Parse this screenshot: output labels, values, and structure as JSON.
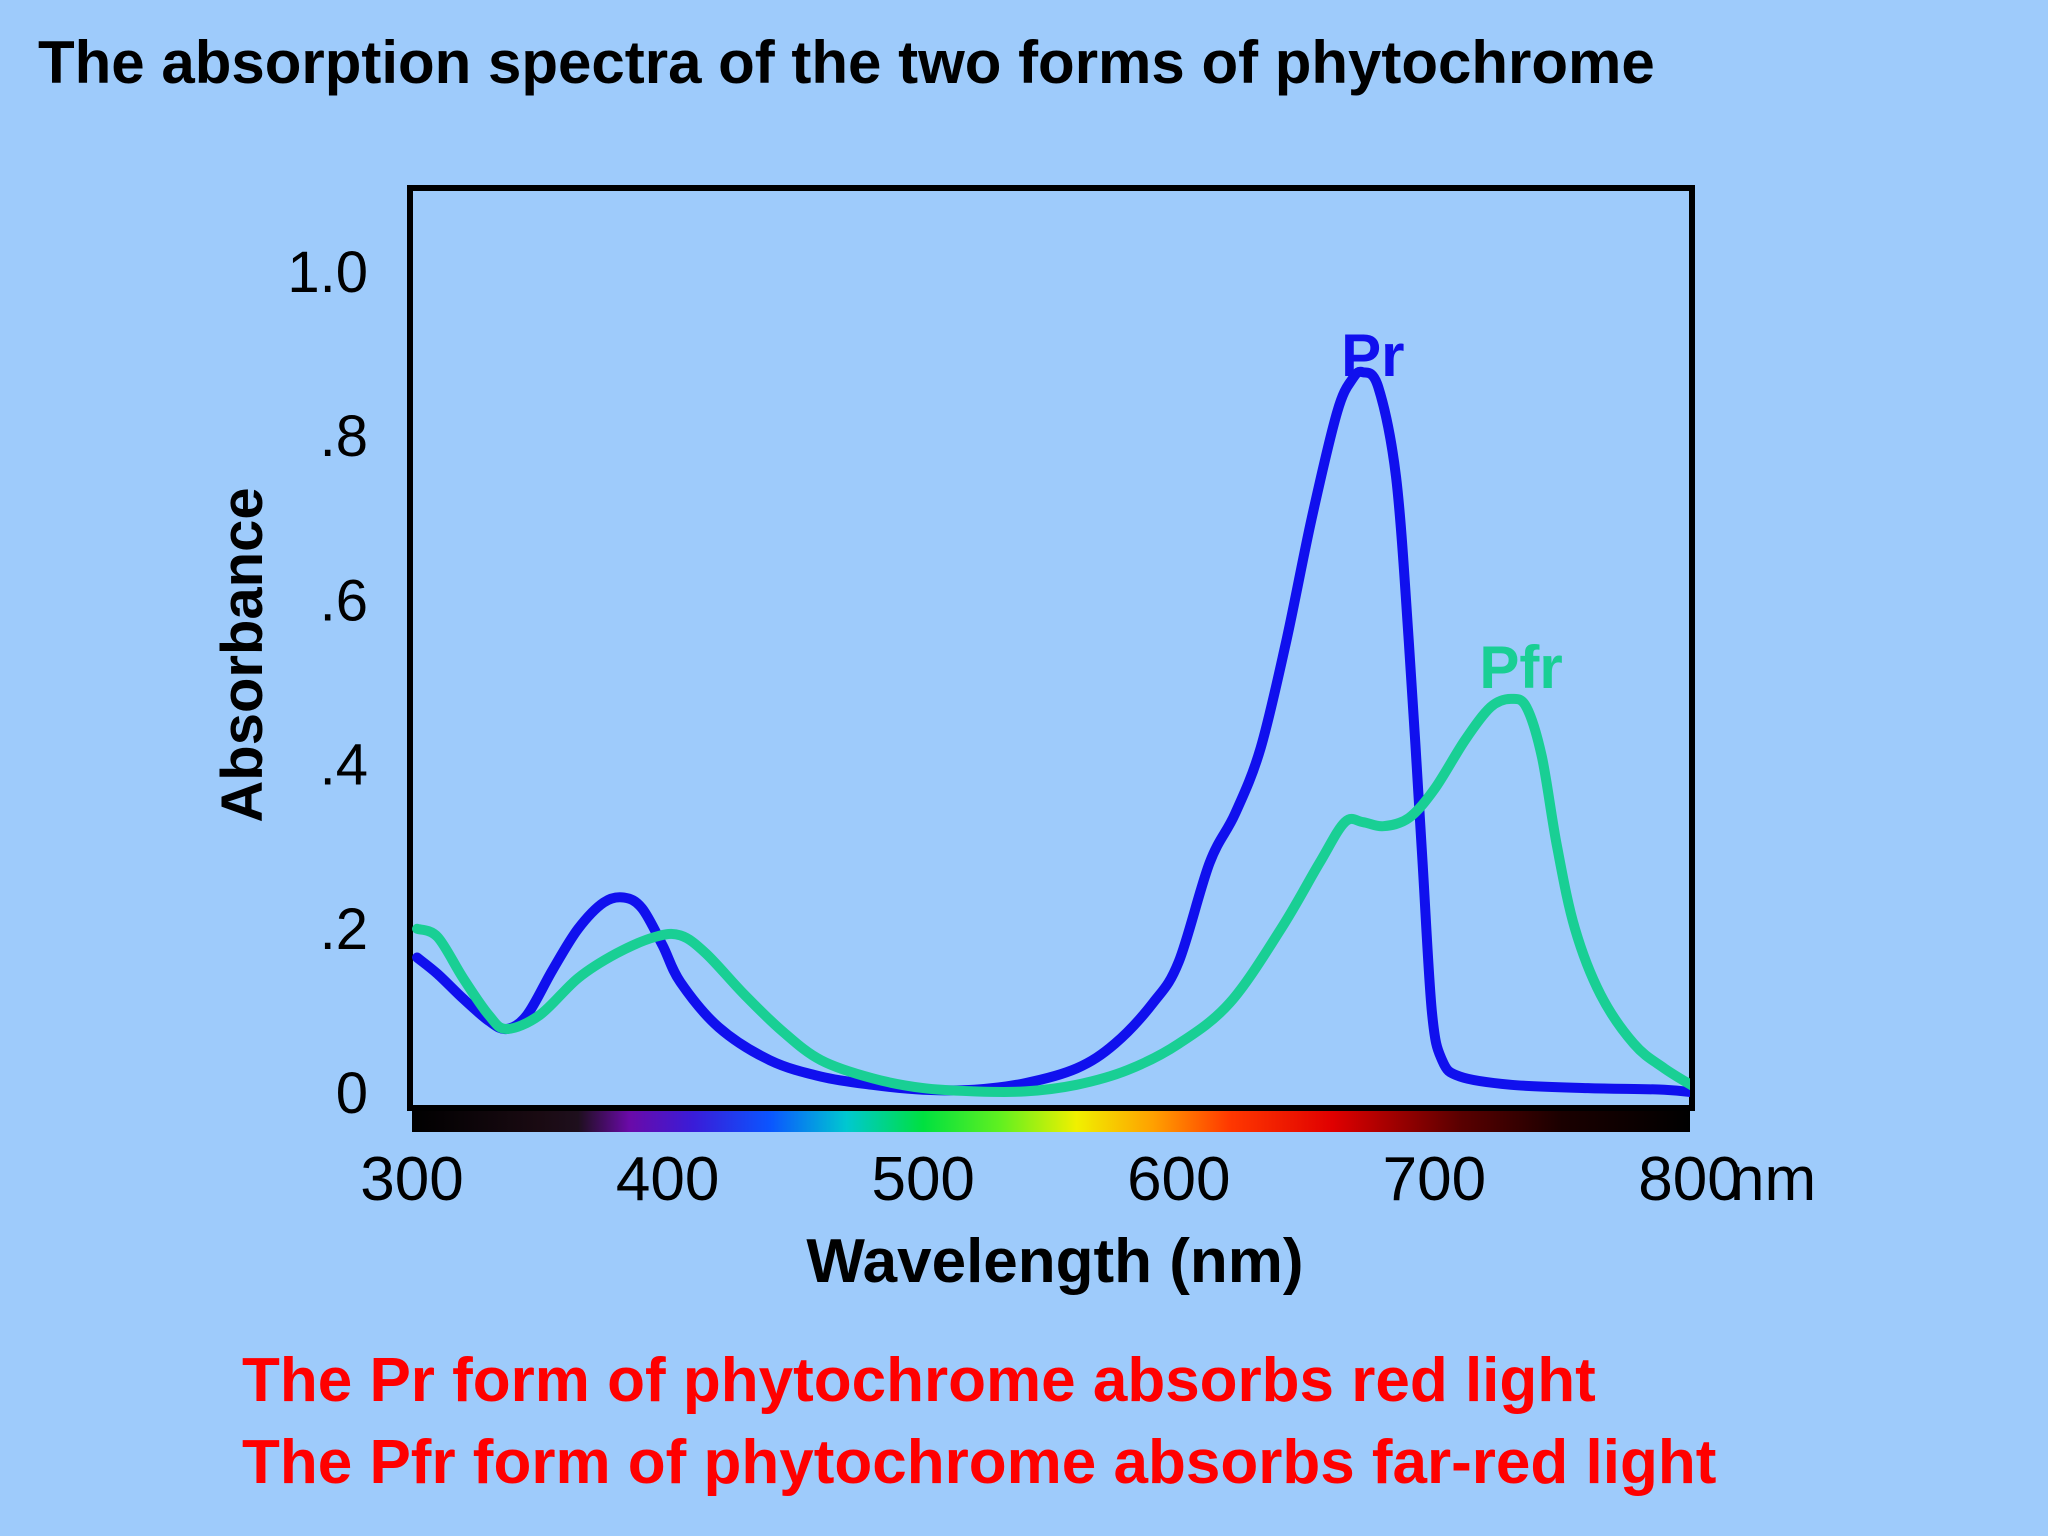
{
  "title": "The absorption spectra of the two forms of phytochrome",
  "captions": [
    "The Pr form of phytochrome absorbs red light",
    "The Pfr form of phytochrome absorbs far-red light"
  ],
  "chart_data": {
    "type": "line",
    "xlabel": "Wavelength (nm)",
    "ylabel": "Absorbance",
    "x_unit_label": "nm",
    "xlim": [
      300,
      800
    ],
    "ylim": [
      0,
      1.0
    ],
    "x_ticks": [
      {
        "value": 300,
        "label": "300"
      },
      {
        "value": 400,
        "label": "400"
      },
      {
        "value": 500,
        "label": "500"
      },
      {
        "value": 600,
        "label": "600"
      },
      {
        "value": 700,
        "label": "700"
      },
      {
        "value": 800,
        "label": "800"
      }
    ],
    "y_ticks": [
      {
        "value": 0,
        "label": "0"
      },
      {
        "value": 0.2,
        "label": ".2"
      },
      {
        "value": 0.4,
        "label": ".4"
      },
      {
        "value": 0.6,
        "label": ".6"
      },
      {
        "value": 0.8,
        "label": ".8"
      },
      {
        "value": 1.0,
        "label": "1.0"
      }
    ],
    "grid": false,
    "spectrum_bar": true,
    "series": [
      {
        "name": "Pr",
        "color": "#1010ee",
        "label_at": [
          672,
          0.9
        ],
        "points": [
          [
            302,
            0.165
          ],
          [
            310,
            0.145
          ],
          [
            320,
            0.115
          ],
          [
            330,
            0.088
          ],
          [
            337,
            0.078
          ],
          [
            345,
            0.095
          ],
          [
            355,
            0.15
          ],
          [
            365,
            0.2
          ],
          [
            375,
            0.232
          ],
          [
            383,
            0.238
          ],
          [
            390,
            0.225
          ],
          [
            398,
            0.18
          ],
          [
            405,
            0.135
          ],
          [
            420,
            0.08
          ],
          [
            440,
            0.04
          ],
          [
            460,
            0.02
          ],
          [
            480,
            0.01
          ],
          [
            500,
            0.004
          ],
          [
            520,
            0.004
          ],
          [
            540,
            0.012
          ],
          [
            560,
            0.03
          ],
          [
            575,
            0.06
          ],
          [
            590,
            0.11
          ],
          [
            600,
            0.16
          ],
          [
            612,
            0.28
          ],
          [
            622,
            0.34
          ],
          [
            632,
            0.42
          ],
          [
            642,
            0.55
          ],
          [
            652,
            0.7
          ],
          [
            662,
            0.83
          ],
          [
            668,
            0.87
          ],
          [
            672,
            0.878
          ],
          [
            678,
            0.86
          ],
          [
            685,
            0.75
          ],
          [
            690,
            0.55
          ],
          [
            695,
            0.3
          ],
          [
            699,
            0.1
          ],
          [
            703,
            0.04
          ],
          [
            710,
            0.02
          ],
          [
            730,
            0.01
          ],
          [
            760,
            0.006
          ],
          [
            790,
            0.004
          ],
          [
            803,
            0.0
          ]
        ]
      },
      {
        "name": "Pfr",
        "color": "#19cf94",
        "label_at": [
          730,
          0.52
        ],
        "points": [
          [
            302,
            0.2
          ],
          [
            310,
            0.19
          ],
          [
            320,
            0.14
          ],
          [
            330,
            0.095
          ],
          [
            337,
            0.078
          ],
          [
            350,
            0.095
          ],
          [
            365,
            0.14
          ],
          [
            380,
            0.17
          ],
          [
            395,
            0.19
          ],
          [
            405,
            0.192
          ],
          [
            415,
            0.17
          ],
          [
            430,
            0.12
          ],
          [
            445,
            0.075
          ],
          [
            460,
            0.04
          ],
          [
            480,
            0.018
          ],
          [
            500,
            0.006
          ],
          [
            520,
            0.002
          ],
          [
            540,
            0.002
          ],
          [
            560,
            0.01
          ],
          [
            580,
            0.028
          ],
          [
            600,
            0.06
          ],
          [
            620,
            0.11
          ],
          [
            640,
            0.2
          ],
          [
            655,
            0.28
          ],
          [
            665,
            0.33
          ],
          [
            672,
            0.33
          ],
          [
            680,
            0.325
          ],
          [
            690,
            0.335
          ],
          [
            700,
            0.37
          ],
          [
            712,
            0.43
          ],
          [
            722,
            0.47
          ],
          [
            730,
            0.48
          ],
          [
            736,
            0.47
          ],
          [
            742,
            0.41
          ],
          [
            748,
            0.3
          ],
          [
            755,
            0.2
          ],
          [
            765,
            0.12
          ],
          [
            778,
            0.06
          ],
          [
            790,
            0.03
          ],
          [
            803,
            0.005
          ]
        ]
      }
    ]
  },
  "colors": {
    "background": "#9ecbfb",
    "caption": "#ff0000",
    "axis": "#000000"
  }
}
